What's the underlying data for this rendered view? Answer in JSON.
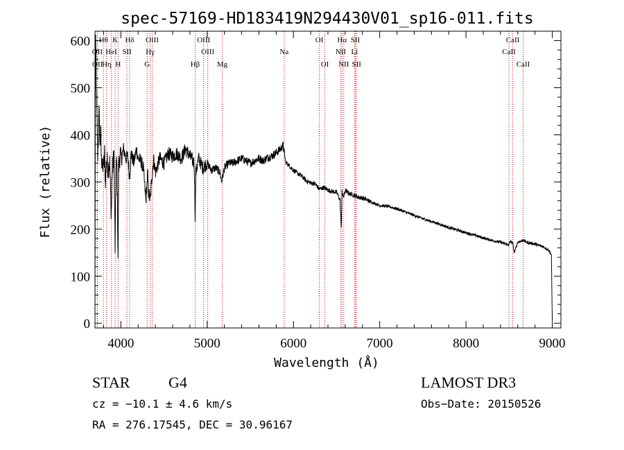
{
  "chart_data": {
    "type": "line",
    "title": "spec-57169-HD183419N294430V01_sp16-011.fits",
    "xlabel": "Wavelength (Å)",
    "ylabel": "Flux (relative)",
    "xlim": [
      3700,
      9100
    ],
    "ylim": [
      -10,
      620
    ],
    "xticks": [
      4000,
      5000,
      6000,
      7000,
      8000,
      9000
    ],
    "yticks": [
      0,
      100,
      200,
      300,
      400,
      500,
      600
    ],
    "series": [
      {
        "name": "spectrum",
        "x": [
          3700,
          3705,
          3712,
          3718,
          3725,
          3732,
          3740,
          3745,
          3750,
          3755,
          3760,
          3768,
          3775,
          3783,
          3790,
          3797,
          3805,
          3812,
          3820,
          3835,
          3850,
          3870,
          3889,
          3900,
          3920,
          3933,
          3945,
          3955,
          3968,
          3975,
          3990,
          4010,
          4030,
          4060,
          4080,
          4101,
          4120,
          4150,
          4180,
          4200,
          4230,
          4260,
          4290,
          4300,
          4310,
          4320,
          4340,
          4360,
          4380,
          4400,
          4450,
          4500,
          4550,
          4600,
          4650,
          4700,
          4750,
          4800,
          4850,
          4861,
          4870,
          4900,
          4950,
          5000,
          5050,
          5100,
          5150,
          5167,
          5200,
          5250,
          5300,
          5350,
          5400,
          5450,
          5500,
          5550,
          5600,
          5650,
          5700,
          5750,
          5800,
          5850,
          5880,
          5895,
          5910,
          5950,
          6000,
          6050,
          6100,
          6150,
          6200,
          6250,
          6300,
          6350,
          6400,
          6450,
          6500,
          6540,
          6555,
          6563,
          6570,
          6585,
          6600,
          6650,
          6700,
          6750,
          6800,
          6850,
          6900,
          6950,
          7000,
          7100,
          7200,
          7300,
          7400,
          7500,
          7600,
          7700,
          7800,
          7900,
          8000,
          8100,
          8200,
          8300,
          8400,
          8498,
          8510,
          8542,
          8560,
          8600,
          8662,
          8700,
          8800,
          8900,
          8960,
          8990,
          9000
        ],
        "y": [
          5,
          600,
          560,
          470,
          420,
          360,
          400,
          420,
          470,
          380,
          390,
          400,
          340,
          360,
          310,
          350,
          330,
          360,
          300,
          350,
          330,
          340,
          230,
          320,
          360,
          160,
          340,
          330,
          140,
          330,
          360,
          350,
          370,
          350,
          355,
          310,
          360,
          340,
          370,
          350,
          345,
          330,
          260,
          290,
          320,
          280,
          260,
          310,
          350,
          320,
          350,
          340,
          360,
          355,
          360,
          350,
          370,
          355,
          340,
          230,
          320,
          350,
          330,
          340,
          325,
          330,
          320,
          300,
          330,
          340,
          340,
          345,
          350,
          345,
          340,
          345,
          350,
          345,
          352,
          355,
          362,
          370,
          378,
          360,
          342,
          335,
          325,
          318,
          312,
          302,
          298,
          296,
          285,
          288,
          283,
          280,
          278,
          262,
          200,
          285,
          270,
          270,
          282,
          275,
          272,
          268,
          266,
          262,
          257,
          254,
          250,
          248,
          243,
          236,
          229,
          222,
          216,
          210,
          203,
          198,
          192,
          187,
          181,
          176,
          172,
          166,
          174,
          170,
          150,
          172,
          176,
          172,
          168,
          162,
          155,
          145,
          5
        ]
      }
    ],
    "lines": [
      {
        "label": "Hθ",
        "x": 3798,
        "row": 0
      },
      {
        "label": "K",
        "x": 3934,
        "row": 0
      },
      {
        "label": "Hδ",
        "x": 4102,
        "row": 0
      },
      {
        "label": "OIII",
        "x": 4363,
        "row": 0
      },
      {
        "label": "OIII",
        "x": 4959,
        "row": 0
      },
      {
        "label": "OI",
        "x": 6300,
        "row": 0
      },
      {
        "label": "Hα",
        "x": 6563,
        "row": 0
      },
      {
        "label": "SII",
        "x": 6717,
        "row": 0
      },
      {
        "label": "CaII",
        "x": 8542,
        "row": 0
      },
      {
        "label": "OII",
        "x": 3727,
        "row": 1
      },
      {
        "label": "HeI",
        "x": 3889,
        "row": 1
      },
      {
        "label": "SII",
        "x": 4070,
        "row": 1
      },
      {
        "label": "Hγ",
        "x": 4340,
        "row": 1
      },
      {
        "label": "OIII",
        "x": 5007,
        "row": 1
      },
      {
        "label": "Na",
        "x": 5893,
        "row": 1
      },
      {
        "label": "NII",
        "x": 6548,
        "row": 1
      },
      {
        "label": "Li",
        "x": 6708,
        "row": 1
      },
      {
        "label": "CaII",
        "x": 8498,
        "row": 1
      },
      {
        "label": "OII",
        "x": 3729,
        "row": 2
      },
      {
        "label": "Hη",
        "x": 3835,
        "row": 2
      },
      {
        "label": "H",
        "x": 3968,
        "row": 2
      },
      {
        "label": "G",
        "x": 4305,
        "row": 2
      },
      {
        "label": "Hβ",
        "x": 4861,
        "row": 2
      },
      {
        "label": "Mg",
        "x": 5175,
        "row": 2
      },
      {
        "label": "OI",
        "x": 6364,
        "row": 2
      },
      {
        "label": "NII",
        "x": 6583,
        "row": 2
      },
      {
        "label": "SII",
        "x": 6731,
        "row": 2
      },
      {
        "label": "CaII",
        "x": 8662,
        "row": 2
      }
    ]
  },
  "info": {
    "object_class": "STAR",
    "subclass": "G4",
    "survey": "LAMOST DR3",
    "redshift": "cz = −10.1 ± 4.6 km/s",
    "obs_date": "Obs−Date: 20150526",
    "coords": "RA = 276.17545, DEC =  30.96167"
  }
}
